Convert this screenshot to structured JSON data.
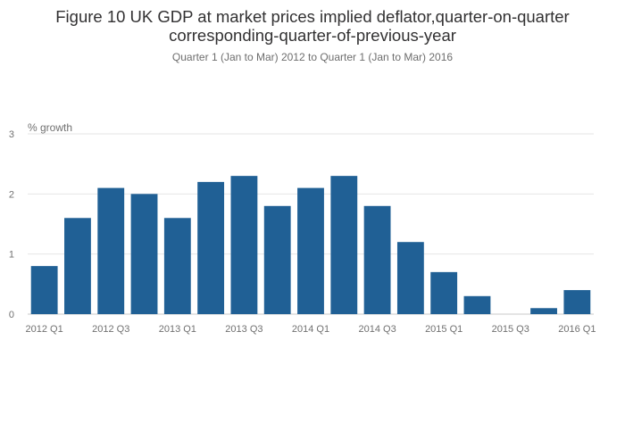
{
  "chart_data": {
    "type": "bar",
    "title_line1": "Figure 10 UK GDP at market prices implied deflator,quarter-on-quarter",
    "title_line2": "corresponding-quarter-of-previous-year",
    "subtitle": "Quarter 1 (Jan to Mar) 2012 to Quarter 1 (Jan to Mar) 2016",
    "ylabel": "% growth",
    "xlabel": "",
    "ylim": [
      0,
      3
    ],
    "yticks": [
      0,
      1,
      2,
      3
    ],
    "categories": [
      "2012 Q1",
      "2012 Q2",
      "2012 Q3",
      "2012 Q4",
      "2013 Q1",
      "2013 Q2",
      "2013 Q3",
      "2013 Q4",
      "2014 Q1",
      "2014 Q2",
      "2014 Q3",
      "2014 Q4",
      "2015 Q1",
      "2015 Q2",
      "2015 Q3",
      "2015 Q4",
      "2016 Q1"
    ],
    "xtick_labels": [
      "2012 Q1",
      "2012 Q3",
      "2013 Q1",
      "2013 Q3",
      "2014 Q1",
      "2014 Q3",
      "2015 Q1",
      "2015 Q3",
      "2016 Q1"
    ],
    "values": [
      0.8,
      1.6,
      2.1,
      2.0,
      1.6,
      2.2,
      2.3,
      1.8,
      2.1,
      2.3,
      1.8,
      1.2,
      0.7,
      0.3,
      0.0,
      0.1,
      0.4
    ],
    "bar_color": "#206095",
    "grid": true
  }
}
